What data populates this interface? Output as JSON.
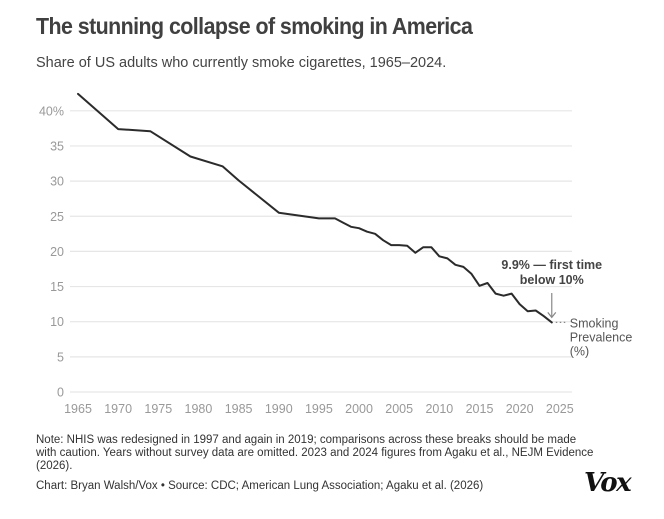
{
  "header": {
    "title": "The stunning collapse of smoking in America",
    "subtitle": "Share of US adults who currently smoke cigarettes, 1965–2024."
  },
  "chart_data": {
    "type": "line",
    "title": "The stunning collapse of smoking in America",
    "subtitle": "Share of US adults who currently smoke cigarettes, 1965–2024.",
    "xlabel": "",
    "ylabel": "",
    "xlim": [
      1965,
      2025
    ],
    "ylim": [
      0,
      42.5
    ],
    "grid": true,
    "x_ticks": [
      1965,
      1970,
      1975,
      1980,
      1985,
      1990,
      1995,
      2000,
      2005,
      2010,
      2015,
      2020,
      2025
    ],
    "y_ticks": [
      {
        "value": 0,
        "label": "0"
      },
      {
        "value": 5,
        "label": "5"
      },
      {
        "value": 10,
        "label": "10"
      },
      {
        "value": 15,
        "label": "15"
      },
      {
        "value": 20,
        "label": "20"
      },
      {
        "value": 25,
        "label": "25"
      },
      {
        "value": 30,
        "label": "30"
      },
      {
        "value": 35,
        "label": "35"
      },
      {
        "value": 40,
        "label": "40%"
      }
    ],
    "series": [
      {
        "name": "Smoking Prevalence (%)",
        "label_lines": [
          "Smoking",
          "Prevalence",
          "(%)"
        ],
        "color": "#2b2b2b",
        "x": [
          1965,
          1970,
          1974,
          1979,
          1983,
          1985,
          1990,
          1995,
          1997,
          1998,
          1999,
          2000,
          2001,
          2002,
          2003,
          2004,
          2005,
          2006,
          2007,
          2008,
          2009,
          2010,
          2011,
          2012,
          2013,
          2014,
          2015,
          2016,
          2017,
          2018,
          2019,
          2020,
          2021,
          2022,
          2023,
          2024
        ],
        "values": [
          42.4,
          37.4,
          37.1,
          33.5,
          32.1,
          30.1,
          25.5,
          24.7,
          24.7,
          24.1,
          23.5,
          23.3,
          22.8,
          22.5,
          21.6,
          20.9,
          20.9,
          20.8,
          19.8,
          20.6,
          20.6,
          19.3,
          19.0,
          18.1,
          17.8,
          16.8,
          15.1,
          15.5,
          14.0,
          13.7,
          14.0,
          12.5,
          11.5,
          11.6,
          10.8,
          9.9
        ]
      }
    ],
    "annotations": [
      {
        "text_lines": [
          "9.9% — first time",
          "below 10%"
        ],
        "x": 2024,
        "y": 9.9,
        "arrow": "down"
      }
    ],
    "legend": "inline-right-end"
  },
  "footer": {
    "note": "Note: NHIS was redesigned in 1997 and again in 2019; comparisons across these breaks should be made with caution. Years without survey data are omitted. 2023 and 2024 figures from Agaku et al., NEJM Evidence (2026).",
    "credit": "Chart: Bryan Walsh/Vox • Source: CDC; American Lung Association; Agaku et al. (2026)",
    "logo": "Vox"
  },
  "colors": {
    "line": "#2b2b2b",
    "grid": "#e6e6e6",
    "axis_text": "#999999",
    "title": "#404040"
  }
}
